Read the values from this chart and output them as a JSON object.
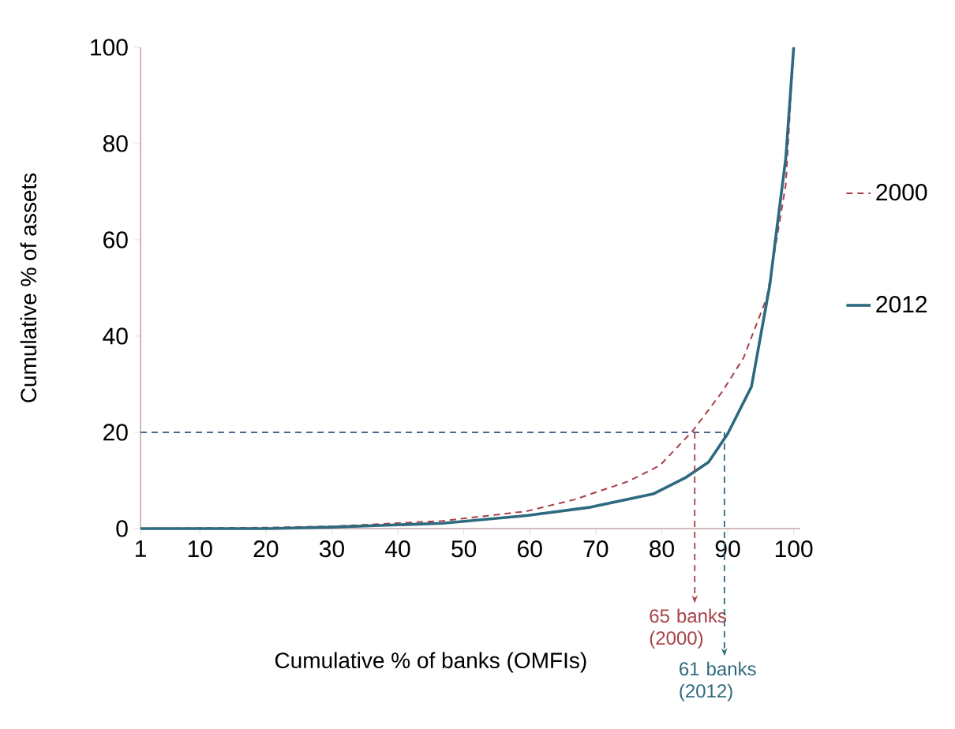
{
  "chart_data": {
    "type": "line",
    "xlabel": "Cumulative % of banks (OMFIs)",
    "ylabel": "Cumulative % of assets",
    "xlim": [
      1,
      101
    ],
    "xticks": [
      1,
      10,
      20,
      30,
      40,
      50,
      60,
      70,
      80,
      90,
      100
    ],
    "ylim": [
      0,
      100
    ],
    "yticks": [
      0,
      20,
      40,
      60,
      80,
      100
    ],
    "legend": "right",
    "grid": false,
    "series": [
      {
        "name": "2000",
        "color": "#a84048",
        "line_style": "dashed",
        "x": [
          1,
          20,
          30.7,
          46.8,
          59.5,
          66.7,
          74.9,
          79.7,
          84.7,
          89.2,
          92.4,
          95.5,
          96,
          98.8,
          100
        ],
        "values": [
          0,
          0.2,
          0.5,
          1.6,
          3.6,
          6,
          9.8,
          13.1,
          20.3,
          28.5,
          35.5,
          46.5,
          48.5,
          71.5,
          100
        ]
      },
      {
        "name": "2012",
        "color": "#2d6a7f",
        "line_style": "solid",
        "x": [
          1,
          20.4,
          30,
          46.8,
          59.5,
          69,
          78.7,
          83.5,
          87.1,
          90,
          93.6,
          96.4,
          97.2,
          98.8,
          100
        ],
        "values": [
          0,
          0,
          0.3,
          1.1,
          2.7,
          4.4,
          7.2,
          10.5,
          13.8,
          19.7,
          29.5,
          50.8,
          59.7,
          77,
          100
        ]
      }
    ],
    "ref_lines": [
      {
        "axis": "y",
        "value": 20,
        "color": "#4a6a90",
        "line_style": "dashed"
      },
      {
        "axis": "x",
        "value": 85,
        "label": "65 banks (2000)",
        "color": "#a84048",
        "line_style": "dashed"
      },
      {
        "axis": "x",
        "value": 89.5,
        "label": "61 banks (2012)",
        "color": "#2d6a7f",
        "line_style": "dashed"
      }
    ]
  }
}
